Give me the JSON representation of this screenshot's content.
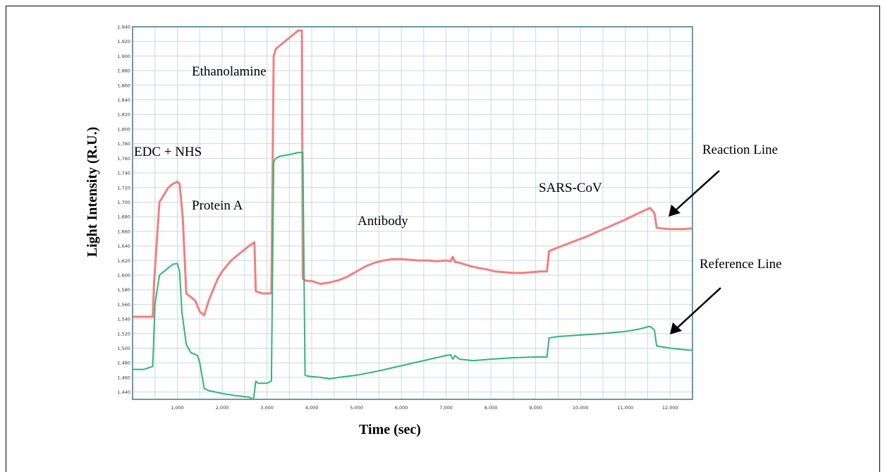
{
  "chart_data": {
    "type": "line",
    "title": "",
    "xlabel": "Time (sec)",
    "ylabel": "Light Intensity (R.U.)",
    "xlim": [
      0,
      12500
    ],
    "ylim": [
      1430,
      1940
    ],
    "x_ticks": [
      1000,
      2000,
      3000,
      4000,
      5000,
      6000,
      7000,
      8000,
      9000,
      10000,
      11000,
      12000
    ],
    "x_tick_labels": [
      "1,000",
      "2,000",
      "3,000",
      "4,000",
      "5,000",
      "6,000",
      "7,000",
      "8,000",
      "9,000",
      "10,000",
      "11,000",
      "12,000"
    ],
    "y_ticks": [
      1440,
      1460,
      1480,
      1500,
      1520,
      1540,
      1560,
      1580,
      1600,
      1620,
      1640,
      1660,
      1680,
      1700,
      1720,
      1740,
      1760,
      1780,
      1800,
      1820,
      1840,
      1860,
      1880,
      1900,
      1920,
      1940
    ],
    "y_tick_labels": [
      "1,440",
      "1,460",
      "1,480",
      "1,500",
      "1,520",
      "1,540",
      "1,560",
      "1,580",
      "1,600",
      "1,620",
      "1,640",
      "1,660",
      "1,680",
      "1,700",
      "1,720",
      "1,740",
      "1,760",
      "1,780",
      "1,800",
      "1,820",
      "1,840",
      "1,860",
      "1,880",
      "1,900",
      "1,920",
      "1,940"
    ],
    "grid": true,
    "colors": {
      "reaction": "#f08080",
      "reference": "#2eb872",
      "grid": "#c8d8e4",
      "axes": "#6a9aaa",
      "arrow": "#000000"
    },
    "series": [
      {
        "name": "Reaction Line",
        "x": [
          0,
          450,
          480,
          600,
          700,
          800,
          900,
          1000,
          1050,
          1120,
          1200,
          1300,
          1400,
          1500,
          1600,
          1700,
          1800,
          1900,
          2000,
          2200,
          2400,
          2600,
          2720,
          2750,
          2900,
          3000,
          3100,
          3150,
          3200,
          3300,
          3400,
          3500,
          3600,
          3700,
          3780,
          3800,
          3850,
          3900,
          4000,
          4200,
          4400,
          4600,
          4800,
          5000,
          5200,
          5400,
          5600,
          5800,
          6000,
          6200,
          6400,
          6600,
          6800,
          7000,
          7100,
          7150,
          7200,
          7300,
          7500,
          7700,
          7900,
          8100,
          8300,
          8500,
          8700,
          8900,
          9100,
          9250,
          9300,
          9500,
          9800,
          10100,
          10400,
          10700,
          11000,
          11300,
          11550,
          11650,
          11700,
          11800,
          12000,
          12300,
          12500
        ],
        "y": [
          1543,
          1543,
          1590,
          1700,
          1710,
          1720,
          1725,
          1728,
          1725,
          1680,
          1575,
          1570,
          1565,
          1550,
          1545,
          1565,
          1580,
          1595,
          1605,
          1620,
          1630,
          1640,
          1645,
          1578,
          1575,
          1575,
          1575,
          1900,
          1910,
          1915,
          1920,
          1925,
          1930,
          1935,
          1935,
          1595,
          1593,
          1592,
          1592,
          1588,
          1590,
          1593,
          1598,
          1605,
          1612,
          1617,
          1620,
          1622,
          1622,
          1621,
          1620,
          1620,
          1619,
          1620,
          1619,
          1625,
          1618,
          1617,
          1613,
          1610,
          1608,
          1605,
          1604,
          1603,
          1603,
          1604,
          1605,
          1605,
          1633,
          1638,
          1645,
          1652,
          1660,
          1668,
          1676,
          1685,
          1692,
          1685,
          1665,
          1664,
          1663,
          1663,
          1664
        ]
      },
      {
        "name": "Reference Line",
        "x": [
          0,
          250,
          450,
          500,
          600,
          700,
          800,
          900,
          1000,
          1050,
          1100,
          1200,
          1300,
          1450,
          1500,
          1600,
          1700,
          2000,
          2300,
          2600,
          2700,
          2750,
          2800,
          3000,
          3100,
          3150,
          3200,
          3300,
          3500,
          3700,
          3800,
          3850,
          3900,
          4000,
          4200,
          4400,
          4600,
          5000,
          5500,
          6000,
          6500,
          7000,
          7100,
          7150,
          7200,
          7300,
          7600,
          8000,
          8500,
          9000,
          9250,
          9300,
          9500,
          10000,
          10500,
          11000,
          11300,
          11550,
          11650,
          11700,
          12000,
          12300,
          12500
        ],
        "y": [
          1471,
          1471,
          1475,
          1560,
          1600,
          1605,
          1610,
          1615,
          1616,
          1605,
          1550,
          1505,
          1494,
          1490,
          1480,
          1445,
          1442,
          1438,
          1435,
          1433,
          1430,
          1455,
          1452,
          1452,
          1455,
          1755,
          1760,
          1763,
          1765,
          1768,
          1768,
          1463,
          1462,
          1461,
          1460,
          1458,
          1460,
          1463,
          1469,
          1476,
          1483,
          1490,
          1491,
          1485,
          1490,
          1485,
          1483,
          1485,
          1487,
          1488,
          1488,
          1514,
          1516,
          1518,
          1520,
          1523,
          1526,
          1530,
          1525,
          1503,
          1500,
          1498,
          1497
        ]
      }
    ],
    "annotations": [
      {
        "text": "EDC + NHS"
      },
      {
        "text": "Ethanolamine"
      },
      {
        "text": "Protein A"
      },
      {
        "text": "Antibody"
      },
      {
        "text": "SARS-CoV"
      },
      {
        "text": "Reaction Line"
      },
      {
        "text": "Reference Line"
      }
    ]
  }
}
